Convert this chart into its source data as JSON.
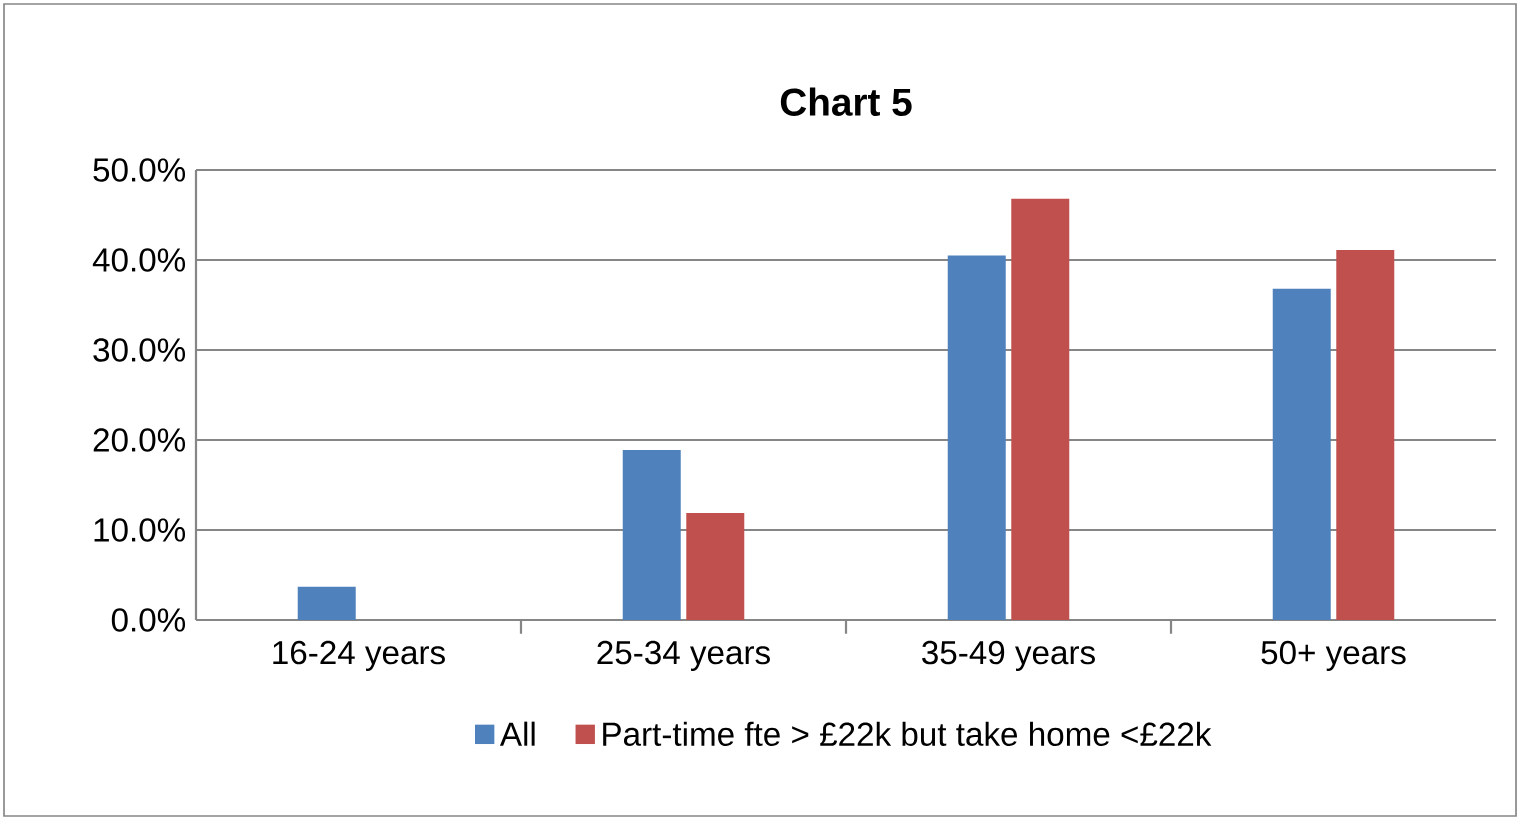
{
  "chart_data": {
    "type": "bar",
    "title": "Chart 5",
    "categories": [
      "16-24 years",
      "25-34 years",
      "35-49 years",
      "50+ years"
    ],
    "series": [
      {
        "name": "All",
        "color": "#4f81bd",
        "values": [
          3.7,
          18.9,
          40.5,
          36.8
        ]
      },
      {
        "name": "Part-time fte > £22k but take home <£22k",
        "color": "#c0504d",
        "values": [
          0,
          11.9,
          46.8,
          41.1
        ]
      }
    ],
    "ylim": [
      0,
      50
    ],
    "yticks": [
      {
        "value": 0,
        "label": "0.0%"
      },
      {
        "value": 10,
        "label": "10.0%"
      },
      {
        "value": 20,
        "label": "20.0%"
      },
      {
        "value": 30,
        "label": "30.0%"
      },
      {
        "value": 40,
        "label": "40.0%"
      },
      {
        "value": 50,
        "label": "50.0%"
      }
    ],
    "grid": "y",
    "legend": "bottom"
  }
}
